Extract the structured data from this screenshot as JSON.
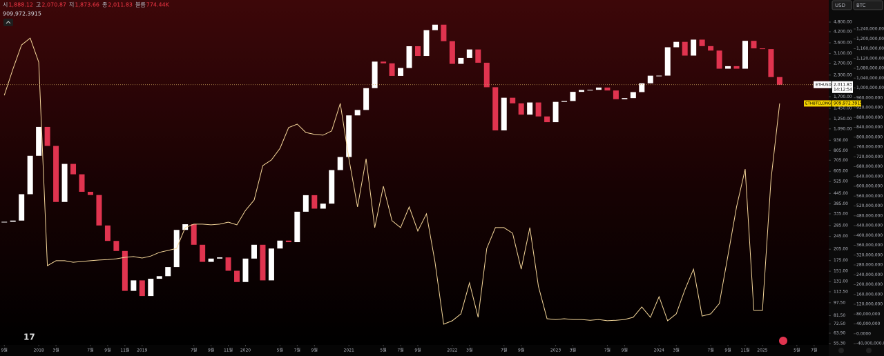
{
  "chart_data": {
    "type": "candlestick-line",
    "header": {
      "items": [
        {
          "label": "시",
          "value": "1,888.12"
        },
        {
          "label": "고",
          "value": "2,070.87"
        },
        {
          "label": "저",
          "value": "1,873.66"
        },
        {
          "label": "종",
          "value": "2,011.83"
        },
        {
          "label": "볼륨",
          "value": "774.44K"
        }
      ],
      "indicator_value": "909,972.3915"
    },
    "currency": "USD",
    "compare": "BTC",
    "x": [
      0,
      1,
      2,
      3,
      4,
      5,
      6,
      7,
      8,
      9,
      10,
      11,
      12,
      13,
      14,
      15,
      16,
      17,
      18,
      19,
      20,
      21,
      22,
      23,
      24,
      25,
      26,
      27,
      28,
      29,
      30,
      31,
      32,
      33,
      34,
      35,
      36,
      37,
      38,
      39,
      40,
      41,
      42,
      43,
      44,
      45,
      46,
      47,
      48,
      49,
      50,
      51,
      52,
      53,
      54,
      55,
      56,
      57,
      58,
      59,
      60,
      61,
      62,
      63,
      64,
      65,
      66,
      67,
      68,
      69,
      70,
      71,
      72,
      73,
      74,
      75,
      76,
      77,
      78,
      79,
      80,
      81,
      82,
      83,
      84,
      85,
      86,
      87,
      88,
      89,
      90
    ],
    "xlim": [
      -0.5,
      95.7
    ],
    "xticks": [
      {
        "value": 0,
        "label": "9월"
      },
      {
        "value": 4,
        "label": "2018"
      },
      {
        "value": 6,
        "label": "3월"
      },
      {
        "value": 10,
        "label": "7월"
      },
      {
        "value": 12,
        "label": "9월"
      },
      {
        "value": 14,
        "label": "11월"
      },
      {
        "value": 16,
        "label": "2019"
      },
      {
        "value": 22,
        "label": "7월"
      },
      {
        "value": 24,
        "label": "9월"
      },
      {
        "value": 26,
        "label": "11월"
      },
      {
        "value": 28,
        "label": "2020"
      },
      {
        "value": 32,
        "label": "5월"
      },
      {
        "value": 34,
        "label": "7월"
      },
      {
        "value": 36,
        "label": "9월"
      },
      {
        "value": 40,
        "label": "2021"
      },
      {
        "value": 44,
        "label": "5월"
      },
      {
        "value": 46,
        "label": "7월"
      },
      {
        "value": 48,
        "label": "9월"
      },
      {
        "value": 52,
        "label": "2022"
      },
      {
        "value": 54,
        "label": "3월"
      },
      {
        "value": 58,
        "label": "7월"
      },
      {
        "value": 60,
        "label": "9월"
      },
      {
        "value": 64,
        "label": "2023"
      },
      {
        "value": 66,
        "label": "3월"
      },
      {
        "value": 70,
        "label": "7월"
      },
      {
        "value": 72,
        "label": "9월"
      },
      {
        "value": 76,
        "label": "2024"
      },
      {
        "value": 78,
        "label": "3월"
      },
      {
        "value": 82,
        "label": "7월"
      },
      {
        "value": 84,
        "label": "9월"
      },
      {
        "value": 86,
        "label": "11월"
      },
      {
        "value": 88,
        "label": "2025"
      },
      {
        "value": 92,
        "label": "5월"
      },
      {
        "value": 94,
        "label": "7월"
      }
    ],
    "ylim": [
      55.3,
      4800
    ],
    "log_scale": true,
    "yticks": [
      {
        "value": 4800,
        "label": "4,800.00"
      },
      {
        "value": 4200,
        "label": "4,200.00"
      },
      {
        "value": 3600,
        "label": "3,600.00"
      },
      {
        "value": 3100,
        "label": "3,100.00"
      },
      {
        "value": 2700,
        "label": "2,700.00"
      },
      {
        "value": 2300,
        "label": "2,300.00"
      },
      {
        "value": 1700,
        "label": "1,700.00"
      },
      {
        "value": 1450,
        "label": "1,450.00"
      },
      {
        "value": 1250,
        "label": "1,250.00"
      },
      {
        "value": 1090,
        "label": "1,090.00"
      },
      {
        "value": 930,
        "label": "930.00"
      },
      {
        "value": 805,
        "label": "805.00"
      },
      {
        "value": 705,
        "label": "705.00"
      },
      {
        "value": 605,
        "label": "605.00"
      },
      {
        "value": 525,
        "label": "525.00"
      },
      {
        "value": 445,
        "label": "445.00"
      },
      {
        "value": 385,
        "label": "385.00"
      },
      {
        "value": 335,
        "label": "335.00"
      },
      {
        "value": 285,
        "label": "285.00"
      },
      {
        "value": 245,
        "label": "245.00"
      },
      {
        "value": 205,
        "label": "205.00"
      },
      {
        "value": 175,
        "label": "175.00"
      },
      {
        "value": 151,
        "label": "151.00"
      },
      {
        "value": 131,
        "label": "131.00"
      },
      {
        "value": 113.5,
        "label": "113.50"
      },
      {
        "value": 97.5,
        "label": "97.50"
      },
      {
        "value": 81.5,
        "label": "81.50"
      },
      {
        "value": 72.5,
        "label": "72.50"
      },
      {
        "value": 63.9,
        "label": "63.90"
      },
      {
        "value": 55.3,
        "label": "55.30"
      }
    ],
    "y2lim": [
      -40000000,
      1240000000
    ],
    "y2ticks": [
      {
        "value": 1240000000,
        "label": "1,240,000,000"
      },
      {
        "value": 1200000000,
        "label": "1,200,000,000"
      },
      {
        "value": 1160000000,
        "label": "1,160,000,000"
      },
      {
        "value": 1120000000,
        "label": "1,120,000,000"
      },
      {
        "value": 1080000000,
        "label": "1,080,000,000"
      },
      {
        "value": 1040000000,
        "label": "1,040,000,000"
      },
      {
        "value": 1000000000,
        "label": "1,000,000,000"
      },
      {
        "value": 960000000,
        "label": "960,000,000"
      },
      {
        "value": 920000000,
        "label": "920,000,000"
      },
      {
        "value": 880000000,
        "label": "880,000,000"
      },
      {
        "value": 840000000,
        "label": "840,000,000"
      },
      {
        "value": 800000000,
        "label": "800,000,000"
      },
      {
        "value": 760000000,
        "label": "760,000,000"
      },
      {
        "value": 720000000,
        "label": "720,000,000"
      },
      {
        "value": 680000000,
        "label": "680,000,000"
      },
      {
        "value": 640000000,
        "label": "640,000,000"
      },
      {
        "value": 600000000,
        "label": "600,000,000"
      },
      {
        "value": 560000000,
        "label": "560,000,000"
      },
      {
        "value": 520000000,
        "label": "520,000,000"
      },
      {
        "value": 480000000,
        "label": "480,000,000"
      },
      {
        "value": 440000000,
        "label": "440,000,000"
      },
      {
        "value": 400000000,
        "label": "400,000,000"
      },
      {
        "value": 360000000,
        "label": "360,000,000"
      },
      {
        "value": 320000000,
        "label": "320,000,000"
      },
      {
        "value": 280000000,
        "label": "280,000,000"
      },
      {
        "value": 240000000,
        "label": "240,000,000"
      },
      {
        "value": 200000000,
        "label": "200,000,000"
      },
      {
        "value": 160000000,
        "label": "160,000,000"
      },
      {
        "value": 120000000,
        "label": "120,000,000"
      },
      {
        "value": 80000000,
        "label": "80,000,000"
      },
      {
        "value": 40000000,
        "label": "40,000,000"
      },
      {
        "value": 0,
        "label": "0.0000"
      },
      {
        "value": -40000000,
        "label": "-40,000,000.0000"
      }
    ],
    "series": [
      {
        "name": "ETHUSD",
        "up_color": "#ffffff",
        "down_color": "#e0344f",
        "values": [
          300,
          305,
          440,
          750,
          1120,
          860,
          395,
          670,
          580,
          455,
          435,
          285,
          230,
          200,
          115,
          133,
          107,
          136,
          141,
          160,
          268,
          290,
          218,
          172,
          180,
          183,
          152,
          130,
          180,
          218,
          133,
          207,
          231,
          226,
          345,
          434,
          360,
          386,
          615,
          737,
          1314,
          1417,
          1918,
          2773,
          2707,
          2275,
          2536,
          3433,
          3001,
          4288,
          4631,
          3683,
          2688,
          2919,
          3282,
          2730,
          1943,
          1067,
          1679,
          1554,
          1328,
          1572,
          1295,
          1196,
          1585,
          1605,
          1822,
          1870,
          1874,
          1934,
          1857,
          1645,
          1671,
          1816,
          2052,
          2281,
          2283,
          3384,
          3647,
          3015,
          3762,
          3438,
          3232,
          2513,
          2603,
          2513,
          3700,
          3332,
          3300,
          2237,
          2011.83
        ]
      },
      {
        "name": "ETHBTCLONG",
        "color": "#f5d79a",
        "axis": "y2",
        "values": [
          970000000,
          1077000000,
          1175000000,
          1203000000,
          1105000000,
          277000000,
          297000000,
          297000000,
          291000000,
          294000000,
          297000000,
          300000000,
          302000000,
          305000000,
          311000000,
          314000000,
          308000000,
          316000000,
          331000000,
          339000000,
          347000000,
          432000000,
          446000000,
          446000000,
          443000000,
          446000000,
          454000000,
          443000000,
          502000000,
          544000000,
          684000000,
          707000000,
          754000000,
          839000000,
          853000000,
          819000000,
          811000000,
          808000000,
          825000000,
          937000000,
          712000000,
          516000000,
          712000000,
          432000000,
          600000000,
          460000000,
          432000000,
          516000000,
          418000000,
          488000000,
          291000000,
          39000000,
          53000000,
          81000000,
          207000000,
          67000000,
          347000000,
          432000000,
          432000000,
          409000000,
          263000000,
          432000000,
          193000000,
          61000000,
          58000000,
          61000000,
          58000000,
          58000000,
          55000000,
          58000000,
          53000000,
          55000000,
          58000000,
          67000000,
          109000000,
          67000000,
          151000000,
          53000000,
          81000000,
          179000000,
          263000000,
          72000000,
          81000000,
          123000000,
          319000000,
          516000000,
          670000000,
          95000000,
          95000000,
          628000000,
          937000000
        ]
      }
    ],
    "last_price": {
      "value": 2011.83,
      "label": "2,011.83"
    },
    "countdown": "14:12:54",
    "indicator_label": "909,972.3915"
  }
}
